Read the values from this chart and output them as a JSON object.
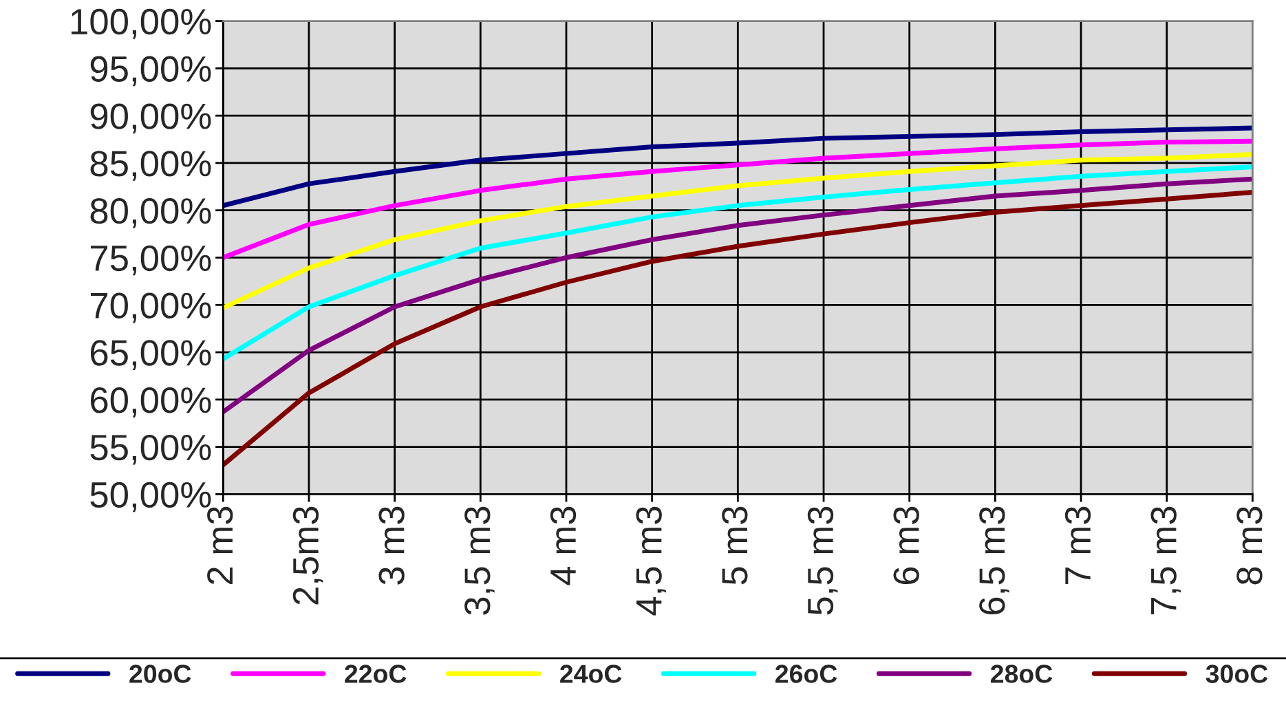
{
  "chart_data": {
    "type": "line",
    "categories": [
      "2 m3",
      "2,5m3",
      "3 m3",
      "3,5 m3",
      "4 m3",
      "4,5 m3",
      "5 m3",
      "5,5 m3",
      "6 m3",
      "6,5 m3",
      "7 m3",
      "7,5 m3",
      "8 m3"
    ],
    "series": [
      {
        "name": "20oC",
        "color": "#000080",
        "values": [
          80.5,
          82.8,
          84.1,
          85.3,
          86.0,
          86.7,
          87.1,
          87.6,
          87.8,
          88.0,
          88.3,
          88.5,
          88.7
        ]
      },
      {
        "name": "22oC",
        "color": "#ff00ff",
        "values": [
          75.0,
          78.5,
          80.5,
          82.1,
          83.3,
          84.1,
          84.8,
          85.5,
          86.0,
          86.5,
          86.9,
          87.2,
          87.3
        ]
      },
      {
        "name": "24oC",
        "color": "#ffff00",
        "values": [
          69.7,
          73.9,
          76.9,
          78.9,
          80.4,
          81.5,
          82.6,
          83.4,
          84.1,
          84.7,
          85.3,
          85.5,
          85.9
        ]
      },
      {
        "name": "26oC",
        "color": "#00ffff",
        "values": [
          64.3,
          69.8,
          73.1,
          76.0,
          77.6,
          79.3,
          80.5,
          81.4,
          82.2,
          82.9,
          83.6,
          84.1,
          84.6
        ]
      },
      {
        "name": "28oC",
        "color": "#800080",
        "values": [
          58.7,
          65.2,
          69.8,
          72.7,
          75.0,
          76.9,
          78.4,
          79.5,
          80.5,
          81.5,
          82.1,
          82.8,
          83.3
        ]
      },
      {
        "name": "30oC",
        "color": "#800000",
        "values": [
          53.1,
          60.7,
          65.9,
          69.8,
          72.4,
          74.6,
          76.2,
          77.5,
          78.7,
          79.8,
          80.5,
          81.2,
          81.9
        ]
      }
    ],
    "ylim": [
      50,
      100
    ],
    "yticks": [
      {
        "value": 50,
        "label": "50,00%"
      },
      {
        "value": 55,
        "label": "55,00%"
      },
      {
        "value": 60,
        "label": "60,00%"
      },
      {
        "value": 65,
        "label": "65,00%"
      },
      {
        "value": 70,
        "label": "70,00%"
      },
      {
        "value": 75,
        "label": "75,00%"
      },
      {
        "value": 80,
        "label": "80,00%"
      },
      {
        "value": 85,
        "label": "85,00%"
      },
      {
        "value": 90,
        "label": "90,00%"
      },
      {
        "value": 95,
        "label": "95,00%"
      },
      {
        "value": 100,
        "label": "100,00%"
      }
    ],
    "grid": true,
    "legend": "bottom",
    "marker": "none",
    "line_style": "solid"
  }
}
